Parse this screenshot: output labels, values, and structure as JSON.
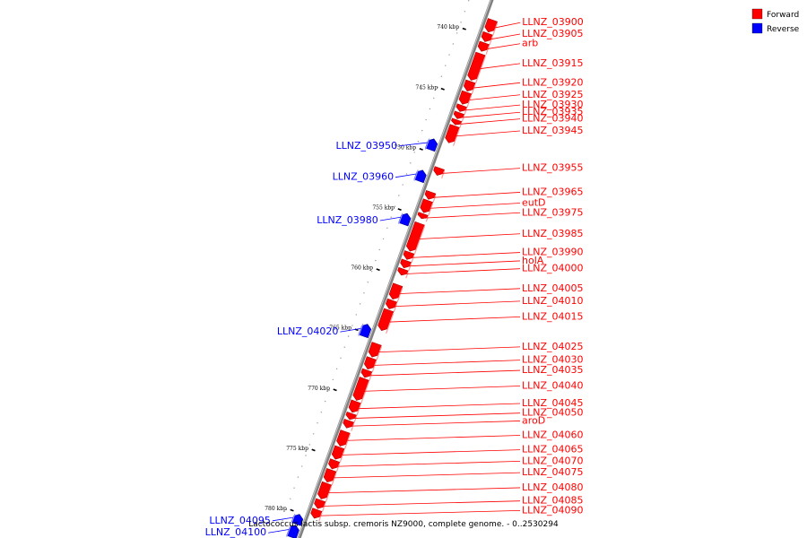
{
  "caption": "Lactococcus lactis subsp. cremoris NZ9000, complete genome. - 0..2530294",
  "legend": [
    {
      "label": "Forward",
      "color": "#ff0000"
    },
    {
      "label": "Reverse",
      "color": "#0000ff"
    }
  ],
  "colors": {
    "forward": "#ff0000",
    "reverse": "#0000ff",
    "backbone": "#808080"
  },
  "ticks": [
    {
      "kbp": 740,
      "label": "740 kbp"
    },
    {
      "kbp": 745,
      "label": "745 kbp"
    },
    {
      "kbp": 750,
      "label": "750 kbp"
    },
    {
      "kbp": 755,
      "label": "755 kbp"
    },
    {
      "kbp": 760,
      "label": "760 kbp"
    },
    {
      "kbp": 765,
      "label": "765 kbp"
    },
    {
      "kbp": 770,
      "label": "770 kbp"
    },
    {
      "kbp": 775,
      "label": "775 kbp"
    },
    {
      "kbp": 780,
      "label": "780 kbp"
    }
  ],
  "genes": [
    {
      "name": "LLNZ_03900",
      "strand": "forward",
      "start_kbp": 738.6,
      "end_kbp": 739.6
    },
    {
      "name": "LLNZ_03905",
      "strand": "forward",
      "start_kbp": 739.7,
      "end_kbp": 740.4
    },
    {
      "name": "arb",
      "strand": "forward",
      "start_kbp": 740.5,
      "end_kbp": 741.2
    },
    {
      "name": "LLNZ_03915",
      "strand": "forward",
      "start_kbp": 741.4,
      "end_kbp": 743.6
    },
    {
      "name": "LLNZ_03920",
      "strand": "forward",
      "start_kbp": 743.7,
      "end_kbp": 744.5
    },
    {
      "name": "LLNZ_03925",
      "strand": "forward",
      "start_kbp": 744.6,
      "end_kbp": 745.6
    },
    {
      "name": "LLNZ_03930",
      "strand": "forward",
      "start_kbp": 745.7,
      "end_kbp": 746.2
    },
    {
      "name": "LLNZ_03935",
      "strand": "forward",
      "start_kbp": 746.3,
      "end_kbp": 746.8
    },
    {
      "name": "LLNZ_03940",
      "strand": "forward",
      "start_kbp": 746.9,
      "end_kbp": 747.3
    },
    {
      "name": "LLNZ_03945",
      "strand": "forward",
      "start_kbp": 747.4,
      "end_kbp": 748.8
    },
    {
      "name": "LLNZ_03950",
      "strand": "reverse",
      "start_kbp": 748.9,
      "end_kbp": 749.8
    },
    {
      "name": "LLNZ_03955",
      "strand": "forward",
      "start_kbp": 750.9,
      "end_kbp": 751.5
    },
    {
      "name": "LLNZ_03960",
      "strand": "reverse",
      "start_kbp": 751.5,
      "end_kbp": 752.4
    },
    {
      "name": "LLNZ_03965",
      "strand": "forward",
      "start_kbp": 752.9,
      "end_kbp": 753.5
    },
    {
      "name": "eutD",
      "strand": "forward",
      "start_kbp": 753.6,
      "end_kbp": 754.6
    },
    {
      "name": "LLNZ_03975",
      "strand": "forward",
      "start_kbp": 754.7,
      "end_kbp": 755.1
    },
    {
      "name": "LLNZ_03980",
      "strand": "reverse",
      "start_kbp": 755.1,
      "end_kbp": 756.0
    },
    {
      "name": "LLNZ_03985",
      "strand": "forward",
      "start_kbp": 755.5,
      "end_kbp": 757.8
    },
    {
      "name": "LLNZ_03990",
      "strand": "forward",
      "start_kbp": 757.9,
      "end_kbp": 758.5
    },
    {
      "name": "holA",
      "strand": "forward",
      "start_kbp": 758.6,
      "end_kbp": 759.2
    },
    {
      "name": "LLNZ_04000",
      "strand": "forward",
      "start_kbp": 759.3,
      "end_kbp": 759.8
    },
    {
      "name": "LLNZ_04005",
      "strand": "forward",
      "start_kbp": 760.6,
      "end_kbp": 761.8
    },
    {
      "name": "LLNZ_04010",
      "strand": "forward",
      "start_kbp": 761.9,
      "end_kbp": 762.6
    },
    {
      "name": "LLNZ_04015",
      "strand": "forward",
      "start_kbp": 762.7,
      "end_kbp": 764.4
    },
    {
      "name": "LLNZ_04020",
      "strand": "reverse",
      "start_kbp": 764.3,
      "end_kbp": 765.3
    },
    {
      "name": "LLNZ_04025",
      "strand": "forward",
      "start_kbp": 765.5,
      "end_kbp": 766.6
    },
    {
      "name": "LLNZ_04030",
      "strand": "forward",
      "start_kbp": 766.7,
      "end_kbp": 767.6
    },
    {
      "name": "LLNZ_04035",
      "strand": "forward",
      "start_kbp": 767.7,
      "end_kbp": 768.3
    },
    {
      "name": "LLNZ_04040",
      "strand": "forward",
      "start_kbp": 768.4,
      "end_kbp": 770.2
    },
    {
      "name": "LLNZ_04045",
      "strand": "forward",
      "start_kbp": 770.3,
      "end_kbp": 771.2
    },
    {
      "name": "LLNZ_04050",
      "strand": "forward",
      "start_kbp": 771.3,
      "end_kbp": 771.8
    },
    {
      "name": "aroD",
      "strand": "forward",
      "start_kbp": 771.9,
      "end_kbp": 772.5
    },
    {
      "name": "LLNZ_04060",
      "strand": "forward",
      "start_kbp": 772.8,
      "end_kbp": 774.0
    },
    {
      "name": "LLNZ_04065",
      "strand": "forward",
      "start_kbp": 774.1,
      "end_kbp": 775.1
    },
    {
      "name": "LLNZ_04070",
      "strand": "forward",
      "start_kbp": 775.2,
      "end_kbp": 775.9
    },
    {
      "name": "LLNZ_04075",
      "strand": "forward",
      "start_kbp": 776.0,
      "end_kbp": 777.0
    },
    {
      "name": "LLNZ_04080",
      "strand": "forward",
      "start_kbp": 777.1,
      "end_kbp": 778.4
    },
    {
      "name": "LLNZ_04085",
      "strand": "forward",
      "start_kbp": 778.5,
      "end_kbp": 779.2
    },
    {
      "name": "LLNZ_04090",
      "strand": "forward",
      "start_kbp": 779.3,
      "end_kbp": 780.0
    },
    {
      "name": "LLNZ_04095",
      "strand": "reverse",
      "start_kbp": 780.1,
      "end_kbp": 780.9
    },
    {
      "name": "LLNZ_04100",
      "strand": "reverse",
      "start_kbp": 781.0,
      "end_kbp": 782.0
    }
  ]
}
